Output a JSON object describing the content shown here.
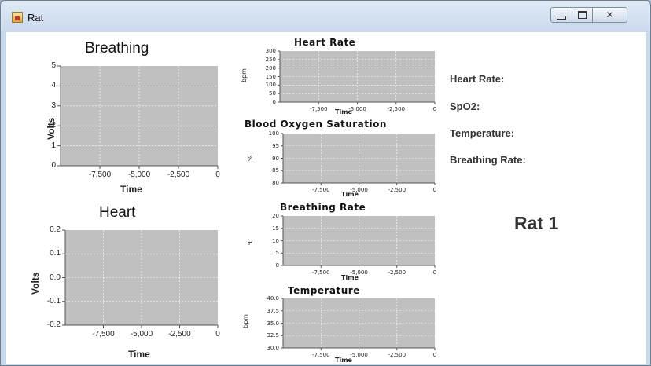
{
  "window": {
    "title": "Rat"
  },
  "info": {
    "heart_rate_label": "Heart Rate:",
    "spo2_label": "SpO2:",
    "temperature_label": "Temperature:",
    "breathing_rate_label": "Breathing Rate:",
    "rat_label": "Rat 1"
  },
  "chart_data": [
    {
      "id": "breathing",
      "type": "line",
      "title": "Breathing",
      "xlabel": "Time",
      "ylabel": "Volts",
      "xlim": [
        -10000,
        0
      ],
      "ylim": [
        0,
        5
      ],
      "x_ticks": [
        "-7,500",
        "-5,000",
        "-2,500",
        "0"
      ],
      "y_ticks": [
        "5",
        "4",
        "3",
        "2",
        "1",
        "0"
      ],
      "grid": true,
      "series": []
    },
    {
      "id": "heart",
      "type": "line",
      "title": "Heart",
      "xlabel": "Time",
      "ylabel": "Volts",
      "xlim": [
        -10000,
        0
      ],
      "ylim": [
        -0.2,
        0.2
      ],
      "x_ticks": [
        "-7,500",
        "-5,000",
        "-2,500",
        "0"
      ],
      "y_ticks": [
        "0.2",
        "0.1",
        "0.0",
        "-0.1",
        "-0.2"
      ],
      "grid": true,
      "series": []
    },
    {
      "id": "heart-rate",
      "type": "line",
      "title": "Heart Rate",
      "xlabel": "Time",
      "ylabel": "bpm",
      "xlim": [
        -10000,
        0
      ],
      "ylim": [
        0,
        300
      ],
      "x_ticks": [
        "-7,500",
        "-5,000",
        "-2,500",
        "0"
      ],
      "y_ticks": [
        "300",
        "250",
        "200",
        "150",
        "100",
        "50",
        "0"
      ],
      "grid": true,
      "series": []
    },
    {
      "id": "blood-oxygen",
      "type": "line",
      "title": "Blood Oxygen Saturation",
      "xlabel": "Time",
      "ylabel": "%",
      "xlim": [
        -10000,
        0
      ],
      "ylim": [
        80,
        100
      ],
      "x_ticks": [
        "-7,500",
        "-5,000",
        "-2,500",
        "0"
      ],
      "y_ticks": [
        "100",
        "95",
        "90",
        "85",
        "80"
      ],
      "grid": true,
      "series": []
    },
    {
      "id": "breathing-rate",
      "type": "line",
      "title": "Breathing Rate",
      "xlabel": "Time",
      "ylabel": "℃",
      "xlim": [
        -10000,
        0
      ],
      "ylim": [
        0,
        20
      ],
      "x_ticks": [
        "-7,500",
        "-5,000",
        "-2,500",
        "0"
      ],
      "y_ticks": [
        "20",
        "15",
        "10",
        "5",
        "0"
      ],
      "grid": true,
      "series": []
    },
    {
      "id": "temperature",
      "type": "line",
      "title": "Temperature",
      "xlabel": "Time",
      "ylabel": "bpm",
      "xlim": [
        -10000,
        0
      ],
      "ylim": [
        30,
        40
      ],
      "x_ticks": [
        "-7,500",
        "-5,000",
        "-2,500",
        "0"
      ],
      "y_ticks": [
        "40.0",
        "37.5",
        "35.0",
        "32.5",
        "30.0"
      ],
      "grid": true,
      "series": []
    }
  ]
}
